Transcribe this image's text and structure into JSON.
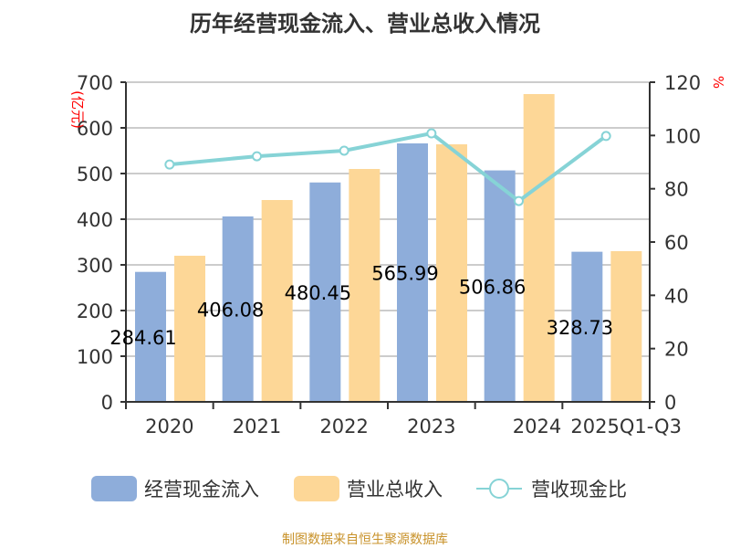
{
  "chart_data": {
    "type": "bar",
    "title": "历年经营现金流入、营业总收入情况",
    "categories": [
      "2020",
      "2021",
      "2022",
      "2023",
      "2024",
      "2025Q1-Q3"
    ],
    "ylabel": "(亿元)",
    "y2label": "%",
    "ylim": [
      0,
      700
    ],
    "y2lim": [
      0,
      120
    ],
    "yticks": [
      0,
      100,
      200,
      300,
      400,
      500,
      600,
      700
    ],
    "y2ticks": [
      0,
      20,
      40,
      60,
      80,
      100,
      120
    ],
    "grid": true,
    "legend": "bottom",
    "series": [
      {
        "name": "经营现金流入",
        "type": "bar",
        "axis": "left",
        "color": "#8EADDA",
        "values": [
          284.61,
          406.08,
          480.45,
          565.99,
          506.86,
          328.73
        ],
        "labels": [
          "284.61",
          "406.08",
          "480.45",
          "565.99",
          "506.86",
          "328.73"
        ]
      },
      {
        "name": "营业总收入",
        "type": "bar",
        "axis": "left",
        "color": "#FDD797",
        "values": [
          320,
          442,
          510,
          564,
          674,
          330
        ]
      },
      {
        "name": "营收现金比",
        "type": "line",
        "axis": "right",
        "color": "#86D3D6",
        "values": [
          89.1,
          92.2,
          94.3,
          100.8,
          75.4,
          99.8
        ]
      }
    ]
  },
  "source": "制图数据来自恒生聚源数据库"
}
